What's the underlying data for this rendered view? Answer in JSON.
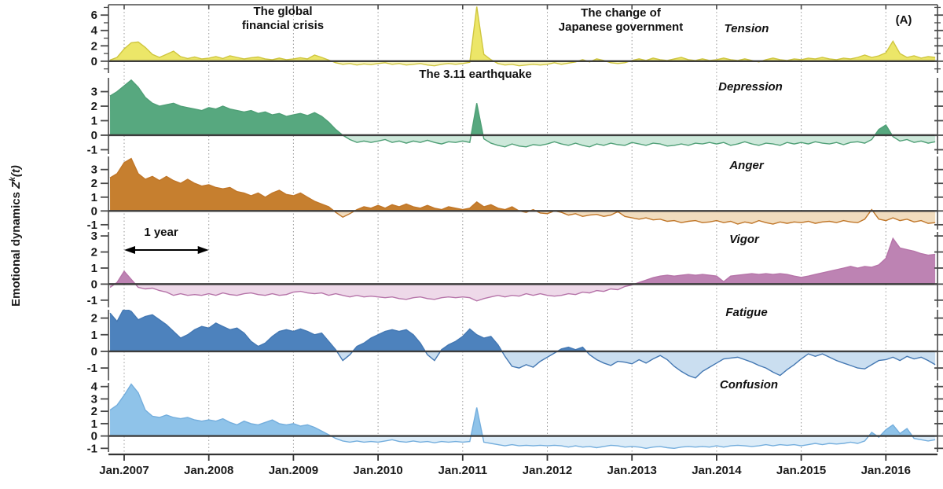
{
  "figure": {
    "corner_label": "(A)",
    "y_axis_label": {
      "prefix": "Emotional dynamics ",
      "z": "Z",
      "sup": "k",
      "suffix": "(t)"
    },
    "annotations": {
      "financial_crisis_line1": "The global",
      "financial_crisis_line2": "financial crisis",
      "government_line1": "The change of",
      "government_line2": "Japanese government",
      "earthquake": "The 3.11 earthquake",
      "one_year": "1 year"
    }
  },
  "chart_data": {
    "type": "area",
    "title": "",
    "x_start": 2006.8333,
    "x_step_years": 0.083333,
    "xlim": [
      2006.81,
      2016.61
    ],
    "x_ticks": [
      2007,
      2008,
      2009,
      2010,
      2011,
      2012,
      2013,
      2014,
      2015,
      2016
    ],
    "x_tick_labels": [
      "Jan.2007",
      "Jan.2008",
      "Jan.2009",
      "Jan.2010",
      "Jan.2011",
      "Jan.2012",
      "Jan.2013",
      "Jan.2014",
      "Jan.2015",
      "Jan.2016"
    ],
    "grid": "vertical-dotted",
    "series": [
      {
        "name": "Tension",
        "fill": "#ece668",
        "fill_negative": "#f7f4c3",
        "line": "#cfc63f",
        "ylim": [
          -1.55,
          7.35
        ],
        "y_ticks_labeled": [
          0,
          2,
          4,
          6
        ],
        "values": [
          0.15,
          0.5,
          1.6,
          2.4,
          2.5,
          1.8,
          0.9,
          0.5,
          0.9,
          1.3,
          0.6,
          0.35,
          0.55,
          0.3,
          0.4,
          0.6,
          0.35,
          0.7,
          0.5,
          0.3,
          0.45,
          0.55,
          0.3,
          0.2,
          0.4,
          0.2,
          0.3,
          0.45,
          0.3,
          0.8,
          0.5,
          0.15,
          -0.2,
          -0.4,
          -0.3,
          -0.5,
          -0.35,
          -0.45,
          -0.3,
          -0.2,
          -0.4,
          -0.3,
          -0.5,
          -0.4,
          -0.3,
          -0.5,
          -0.6,
          -0.4,
          -0.3,
          -0.4,
          -0.3,
          -0.15,
          7.1,
          0.9,
          0.2,
          -0.3,
          -0.5,
          -0.4,
          -0.6,
          -0.5,
          -0.4,
          -0.5,
          -0.4,
          -0.2,
          -0.4,
          -0.25,
          -0.1,
          0.2,
          -0.1,
          0.3,
          0.1,
          -0.2,
          -0.3,
          -0.2,
          0.1,
          0.3,
          0.1,
          0.4,
          0.2,
          0.1,
          0.3,
          0.5,
          0.2,
          0.1,
          0.3,
          0.1,
          0.2,
          0.4,
          0.2,
          0.1,
          0.3,
          0.1,
          -0.1,
          0.2,
          0.4,
          0.2,
          0.1,
          0.3,
          0.2,
          0.4,
          0.3,
          0.5,
          0.3,
          0.2,
          0.4,
          0.3,
          0.5,
          0.8,
          0.5,
          0.7,
          1.1,
          2.6,
          1.0,
          0.5,
          0.7,
          0.4,
          0.6,
          0.5
        ]
      },
      {
        "name": "Depression",
        "fill": "#57a87f",
        "fill_negative": "#cde8da",
        "line": "#4f9f76",
        "ylim": [
          -1.3,
          3.95
        ],
        "y_ticks_labeled": [
          -1,
          0,
          1,
          2,
          3
        ],
        "values": [
          2.7,
          3.0,
          3.4,
          3.8,
          3.3,
          2.6,
          2.2,
          2.0,
          2.1,
          2.2,
          2.0,
          1.9,
          1.8,
          1.7,
          1.9,
          1.8,
          2.0,
          1.8,
          1.7,
          1.6,
          1.7,
          1.5,
          1.6,
          1.4,
          1.5,
          1.3,
          1.4,
          1.5,
          1.35,
          1.55,
          1.3,
          0.9,
          0.4,
          0.0,
          -0.3,
          -0.5,
          -0.4,
          -0.5,
          -0.4,
          -0.3,
          -0.5,
          -0.4,
          -0.55,
          -0.4,
          -0.5,
          -0.35,
          -0.5,
          -0.6,
          -0.45,
          -0.5,
          -0.4,
          -0.5,
          2.2,
          -0.25,
          -0.55,
          -0.7,
          -0.8,
          -0.6,
          -0.75,
          -0.8,
          -0.65,
          -0.7,
          -0.6,
          -0.45,
          -0.6,
          -0.7,
          -0.55,
          -0.7,
          -0.8,
          -0.6,
          -0.7,
          -0.55,
          -0.65,
          -0.7,
          -0.5,
          -0.6,
          -0.7,
          -0.55,
          -0.6,
          -0.75,
          -0.7,
          -0.6,
          -0.7,
          -0.55,
          -0.6,
          -0.5,
          -0.6,
          -0.5,
          -0.7,
          -0.6,
          -0.45,
          -0.6,
          -0.7,
          -0.55,
          -0.6,
          -0.7,
          -0.5,
          -0.6,
          -0.5,
          -0.6,
          -0.45,
          -0.55,
          -0.6,
          -0.5,
          -0.65,
          -0.5,
          -0.45,
          -0.55,
          -0.3,
          0.4,
          0.7,
          -0.1,
          -0.4,
          -0.3,
          -0.5,
          -0.4,
          -0.55,
          -0.45
        ]
      },
      {
        "name": "Anger",
        "fill": "#c67f2f",
        "fill_negative": "#f1dcbe",
        "line": "#c07628",
        "ylim": [
          -1.35,
          3.95
        ],
        "y_ticks_labeled": [
          -1,
          0,
          1,
          2,
          3
        ],
        "values": [
          2.4,
          2.7,
          3.5,
          3.8,
          2.7,
          2.3,
          2.5,
          2.2,
          2.5,
          2.2,
          2.0,
          2.3,
          2.0,
          1.8,
          1.9,
          1.7,
          1.6,
          1.7,
          1.4,
          1.3,
          1.1,
          1.3,
          1.0,
          1.3,
          1.5,
          1.2,
          1.1,
          1.3,
          1.0,
          0.7,
          0.5,
          0.3,
          -0.1,
          -0.45,
          -0.2,
          0.1,
          0.3,
          0.2,
          0.4,
          0.2,
          0.45,
          0.3,
          0.5,
          0.3,
          0.2,
          0.4,
          0.2,
          0.1,
          0.3,
          0.2,
          0.1,
          0.2,
          0.65,
          0.3,
          0.45,
          0.2,
          0.1,
          0.3,
          0.0,
          -0.1,
          0.1,
          -0.15,
          -0.2,
          0.0,
          -0.1,
          -0.3,
          -0.2,
          -0.4,
          -0.3,
          -0.25,
          -0.4,
          -0.3,
          -0.05,
          -0.4,
          -0.5,
          -0.6,
          -0.5,
          -0.65,
          -0.6,
          -0.75,
          -0.7,
          -0.85,
          -0.75,
          -0.7,
          -0.85,
          -0.8,
          -0.7,
          -0.85,
          -0.75,
          -0.95,
          -0.8,
          -0.9,
          -0.7,
          -0.85,
          -0.95,
          -0.8,
          -0.9,
          -0.8,
          -0.85,
          -0.75,
          -0.9,
          -0.8,
          -0.75,
          -0.85,
          -0.7,
          -0.8,
          -0.85,
          -0.6,
          0.1,
          -0.6,
          -0.7,
          -0.5,
          -0.7,
          -0.6,
          -0.8,
          -0.7,
          -0.9,
          -0.85
        ]
      },
      {
        "name": "Vigor",
        "fill": "#bd83b3",
        "fill_negative": "#eed9e9",
        "line": "#b674a9",
        "ylim": [
          -1.45,
          3.25
        ],
        "y_ticks_labeled": [
          -1,
          0,
          1,
          2,
          3
        ],
        "values": [
          -0.2,
          0.1,
          0.8,
          0.3,
          -0.2,
          -0.3,
          -0.25,
          -0.4,
          -0.5,
          -0.7,
          -0.6,
          -0.7,
          -0.65,
          -0.7,
          -0.6,
          -0.7,
          -0.55,
          -0.65,
          -0.7,
          -0.6,
          -0.55,
          -0.65,
          -0.7,
          -0.6,
          -0.7,
          -0.65,
          -0.5,
          -0.45,
          -0.55,
          -0.6,
          -0.55,
          -0.7,
          -0.6,
          -0.7,
          -0.8,
          -0.7,
          -0.8,
          -0.75,
          -0.8,
          -0.85,
          -0.8,
          -0.9,
          -0.95,
          -0.85,
          -0.8,
          -0.9,
          -0.95,
          -0.85,
          -0.8,
          -0.85,
          -0.8,
          -0.85,
          -1.05,
          -0.9,
          -0.8,
          -0.7,
          -0.8,
          -0.7,
          -0.75,
          -0.6,
          -0.7,
          -0.6,
          -0.7,
          -0.75,
          -0.7,
          -0.6,
          -0.65,
          -0.5,
          -0.55,
          -0.4,
          -0.45,
          -0.3,
          -0.35,
          -0.15,
          -0.05,
          0.1,
          0.25,
          0.4,
          0.5,
          0.55,
          0.5,
          0.55,
          0.6,
          0.55,
          0.6,
          0.55,
          0.5,
          0.15,
          0.5,
          0.55,
          0.6,
          0.65,
          0.6,
          0.65,
          0.6,
          0.65,
          0.6,
          0.5,
          0.42,
          0.5,
          0.6,
          0.7,
          0.8,
          0.9,
          1.0,
          1.1,
          1.0,
          1.1,
          1.05,
          1.2,
          1.6,
          2.85,
          2.25,
          2.15,
          2.05,
          1.9,
          1.8,
          1.85
        ]
      },
      {
        "name": "Fatigue",
        "fill": "#4d82bd",
        "fill_negative": "#cadef0",
        "line": "#4478b3",
        "ylim": [
          -1.75,
          2.5
        ],
        "y_ticks_labeled": [
          -1,
          0,
          1,
          2
        ],
        "values": [
          2.3,
          1.8,
          2.6,
          2.4,
          1.9,
          2.1,
          2.2,
          1.9,
          1.6,
          1.2,
          0.8,
          1.0,
          1.3,
          1.5,
          1.4,
          1.7,
          1.5,
          1.3,
          1.4,
          1.1,
          0.6,
          0.3,
          0.5,
          0.9,
          1.2,
          1.3,
          1.2,
          1.35,
          1.2,
          1.0,
          1.1,
          0.6,
          0.1,
          -0.55,
          -0.2,
          0.3,
          0.5,
          0.8,
          1.0,
          1.2,
          1.3,
          1.2,
          1.3,
          1.0,
          0.5,
          -0.2,
          -0.55,
          0.1,
          0.4,
          0.6,
          0.9,
          1.35,
          1.0,
          0.8,
          0.9,
          0.4,
          -0.3,
          -0.9,
          -1.0,
          -0.8,
          -0.95,
          -0.6,
          -0.35,
          -0.1,
          0.15,
          0.25,
          0.1,
          0.25,
          -0.2,
          -0.5,
          -0.7,
          -0.85,
          -0.6,
          -0.65,
          -0.75,
          -0.5,
          -0.7,
          -0.45,
          -0.25,
          -0.5,
          -0.9,
          -1.2,
          -1.45,
          -1.6,
          -1.2,
          -0.95,
          -0.7,
          -0.45,
          -0.4,
          -0.35,
          -0.5,
          -0.65,
          -0.85,
          -1.0,
          -1.25,
          -1.45,
          -1.1,
          -0.8,
          -0.45,
          -0.15,
          -0.3,
          -0.15,
          -0.35,
          -0.55,
          -0.7,
          -0.85,
          -1.0,
          -1.05,
          -0.8,
          -0.55,
          -0.5,
          -0.35,
          -0.55,
          -0.3,
          -0.45,
          -0.35,
          -0.55,
          -0.8
        ]
      },
      {
        "name": "Confusion",
        "fill": "#8fc3e9",
        "fill_negative": "#dcecf8",
        "line": "#74aedd",
        "ylim": [
          -1.3,
          4.3
        ],
        "y_ticks_labeled": [
          -1,
          0,
          1,
          2,
          3,
          4
        ],
        "values": [
          2.1,
          2.5,
          3.3,
          4.2,
          3.5,
          2.1,
          1.6,
          1.5,
          1.7,
          1.5,
          1.4,
          1.5,
          1.3,
          1.2,
          1.3,
          1.2,
          1.4,
          1.1,
          0.9,
          1.2,
          1.0,
          0.9,
          1.1,
          1.3,
          1.0,
          0.9,
          1.0,
          0.8,
          0.9,
          0.7,
          0.4,
          0.1,
          -0.2,
          -0.4,
          -0.5,
          -0.4,
          -0.5,
          -0.45,
          -0.5,
          -0.4,
          -0.3,
          -0.45,
          -0.5,
          -0.4,
          -0.5,
          -0.45,
          -0.55,
          -0.45,
          -0.5,
          -0.45,
          -0.5,
          -0.45,
          2.3,
          -0.5,
          -0.6,
          -0.7,
          -0.8,
          -0.7,
          -0.8,
          -0.75,
          -0.8,
          -0.75,
          -0.8,
          -0.75,
          -0.8,
          -0.9,
          -0.8,
          -0.9,
          -0.85,
          -0.95,
          -0.85,
          -0.75,
          -0.8,
          -0.9,
          -0.85,
          -0.9,
          -1.0,
          -0.9,
          -0.85,
          -0.95,
          -1.0,
          -0.9,
          -0.85,
          -0.9,
          -0.85,
          -0.9,
          -0.8,
          -0.9,
          -0.8,
          -0.75,
          -0.8,
          -0.85,
          -0.8,
          -0.7,
          -0.8,
          -0.7,
          -0.75,
          -0.7,
          -0.8,
          -0.7,
          -0.6,
          -0.7,
          -0.6,
          -0.65,
          -0.6,
          -0.5,
          -0.6,
          -0.4,
          0.3,
          -0.1,
          0.5,
          0.9,
          0.2,
          0.6,
          -0.2,
          -0.3,
          -0.4,
          -0.3
        ]
      }
    ]
  }
}
